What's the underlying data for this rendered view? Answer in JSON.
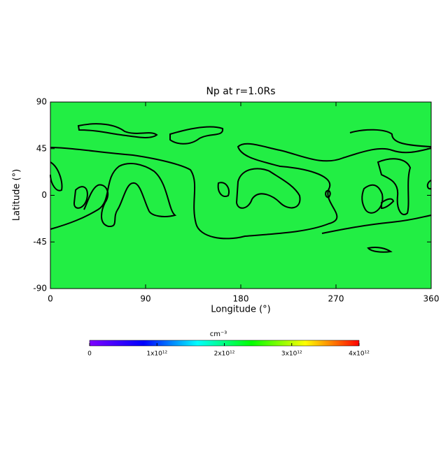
{
  "chart_data": {
    "type": "contour",
    "title": "Np at r=1.0Rs",
    "xlabel": "Longitude (°)",
    "ylabel": "Latitude (°)",
    "xlim": [
      0,
      360
    ],
    "xticks": [
      0,
      90,
      180,
      270,
      360
    ],
    "ylim": [
      -90,
      90
    ],
    "yticks": [
      -90,
      -45,
      0,
      45,
      90
    ],
    "fill_color": "#22ee44",
    "colorbar": {
      "label": "cm⁻³",
      "lim": [
        0,
        4000000000000
      ],
      "ticks": [
        0,
        {
          "value": 1000000000000,
          "label": "1x10¹²"
        },
        {
          "value": 2000000000000,
          "label": "2x10¹²"
        },
        {
          "value": 3000000000000,
          "label": "3x10¹²"
        },
        {
          "value": 4000000000000,
          "label": "4x10¹²"
        }
      ],
      "colors": [
        "#7f00ff",
        "#0000ff",
        "#00ffff",
        "#00ff00",
        "#ffff00",
        "#ff0000"
      ]
    }
  }
}
